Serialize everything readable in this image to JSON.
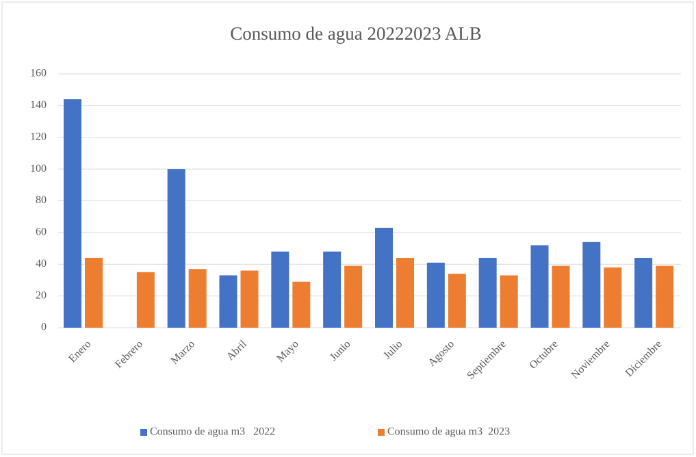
{
  "chart_data": {
    "type": "bar",
    "title": "Consumo de agua 20222023 ALB",
    "categories": [
      "Enero",
      "Febrero",
      "Marzo",
      "Abril",
      "Mayo",
      "Junio",
      "Julio",
      "Agosto",
      "Septiembre",
      "Octubre",
      "Noviembre",
      "Diciembre"
    ],
    "series": [
      {
        "name": "Consumo de agua m3   2022",
        "color": "#4472c4",
        "values": [
          144,
          null,
          100,
          33,
          48,
          48,
          63,
          41,
          44,
          52,
          54,
          44
        ]
      },
      {
        "name": "Consumo de agua m3  2023",
        "color": "#ed7d31",
        "values": [
          44,
          35,
          37,
          36,
          29,
          39,
          44,
          34,
          33,
          39,
          38,
          39
        ]
      }
    ],
    "ylim": [
      0,
      160
    ],
    "yticks": [
      0,
      20,
      40,
      60,
      80,
      100,
      120,
      140,
      160
    ],
    "grid": true,
    "legend": "bottom"
  }
}
